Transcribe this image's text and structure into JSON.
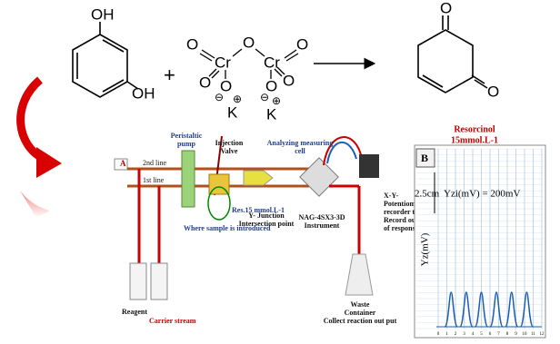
{
  "reaction": {
    "resorcinol": {
      "oh_top": "OH",
      "oh_bottom": "OH"
    },
    "plus": "+",
    "dichromate": {
      "o_left": "O",
      "cr_left": "Cr",
      "o_bridge": "O",
      "cr_right": "Cr",
      "o_right": "O",
      "o_lower_left": "O",
      "o_lower_right": "O",
      "o_minus_left": "O",
      "o_minus_right": "O",
      "minus": "⊖",
      "k_left": "K",
      "k_right": "K",
      "plus_charge": "⊕"
    },
    "product": {
      "o_top": "O",
      "o_bottom": "O"
    }
  },
  "panel_a": {
    "letter": "A",
    "line2": "2nd line",
    "line1": "1st line",
    "pump": [
      "Peristaltic",
      "pump"
    ],
    "valve": [
      "Injection",
      "Valve"
    ],
    "cell": [
      "Analyzing measuring",
      "cell"
    ],
    "sample": "Res.15 mmol.L-1",
    "sample_note": "Where sample is introduced",
    "junction": [
      "Y- Junction",
      "Intersection point"
    ],
    "instrument": [
      "NAG-4SX3-3D",
      "Instrument"
    ],
    "recorder": [
      "X-Y-",
      "Potentiometric",
      "recorder to",
      "Record output",
      "of response"
    ],
    "reagent": "Reagent",
    "carrier": "Carrier stream",
    "waste": [
      "Waste",
      "Container",
      "Collect reaction out put"
    ]
  },
  "panel_b": {
    "title": [
      "Resorcinol",
      "15mmol.L-1"
    ],
    "letter": "B",
    "scale": "2.5cm",
    "equation": "Yzi(mV) = 200mV",
    "y_label": "Yz(mV)",
    "ticks": [
      0,
      1,
      2,
      3,
      4,
      5,
      6,
      7,
      8,
      9,
      10,
      11,
      12
    ]
  }
}
